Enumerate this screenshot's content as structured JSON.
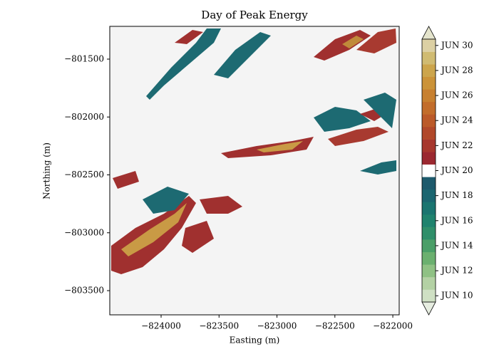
{
  "chart_data": {
    "type": "raster",
    "title": "Day of Peak Energy",
    "xlabel": "Easting (m)",
    "ylabel": "Northing (m)",
    "xlim": [
      -824443,
      -821945
    ],
    "ylim": [
      -803709,
      -801217
    ],
    "xticks": [
      {
        "value": -824000,
        "label": "−824000"
      },
      {
        "value": -823500,
        "label": "−823500"
      },
      {
        "value": -823000,
        "label": "−823000"
      },
      {
        "value": -822500,
        "label": "−822500"
      },
      {
        "value": -822000,
        "label": "−822000"
      }
    ],
    "yticks": [
      {
        "value": -801500,
        "label": "−801500"
      },
      {
        "value": -802000,
        "label": "−802000"
      },
      {
        "value": -802500,
        "label": "−802500"
      },
      {
        "value": -803000,
        "label": "−803000"
      },
      {
        "value": -803500,
        "label": "−803500"
      }
    ],
    "background": "#f4f4f4",
    "colorbar": {
      "ticks": [
        "JUN 10",
        "JUN 12",
        "JUN 14",
        "JUN 16",
        "JUN 18",
        "JUN 20",
        "JUN 22",
        "JUN 24",
        "JUN 26",
        "JUN 28",
        "JUN 30"
      ],
      "colors": [
        "#e6ede0",
        "#cfe0c4",
        "#b3d1a4",
        "#8fc184",
        "#6bb06f",
        "#4b9f68",
        "#2f8f6a",
        "#1f836e",
        "#1a7570",
        "#1b6670",
        "#1d5a6c",
        "#ffffff",
        "#9b2830",
        "#a7372d",
        "#b1482a",
        "#bb5a29",
        "#c26d2b",
        "#c78030",
        "#cb9339",
        "#cca54c",
        "#d0bb72",
        "#dcd0a4",
        "#e4e4cc"
      ]
    }
  }
}
